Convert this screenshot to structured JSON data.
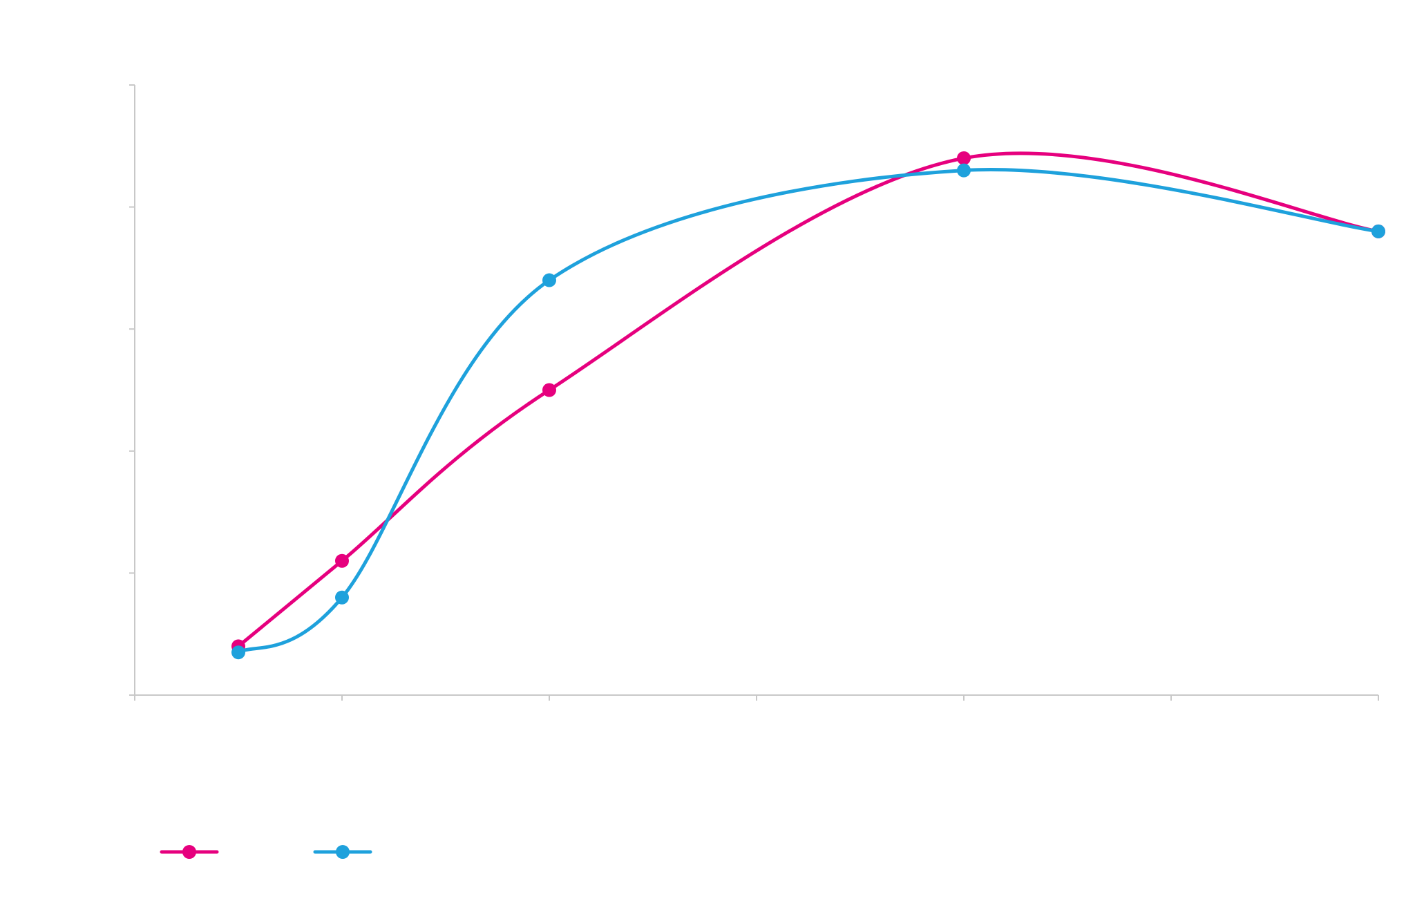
{
  "chart_data": {
    "type": "line",
    "smooth": true,
    "title": "",
    "xlabel": "",
    "ylabel": "",
    "xlim": [
      0,
      6
    ],
    "ylim": [
      0,
      5
    ],
    "x_tick_count": 7,
    "y_tick_count": 6,
    "tick_labels_visible": false,
    "grid": false,
    "legend_position": "bottom-left",
    "series": [
      {
        "name": "",
        "color": "#e6007e",
        "x": [
          0.5,
          1,
          2,
          4,
          6
        ],
        "y": [
          0.4,
          1.1,
          2.5,
          4.4,
          3.8
        ]
      },
      {
        "name": "",
        "color": "#1ea1dc",
        "x": [
          0.5,
          1,
          2,
          4,
          6
        ],
        "y": [
          0.35,
          0.8,
          3.4,
          4.3,
          3.8
        ]
      }
    ]
  }
}
